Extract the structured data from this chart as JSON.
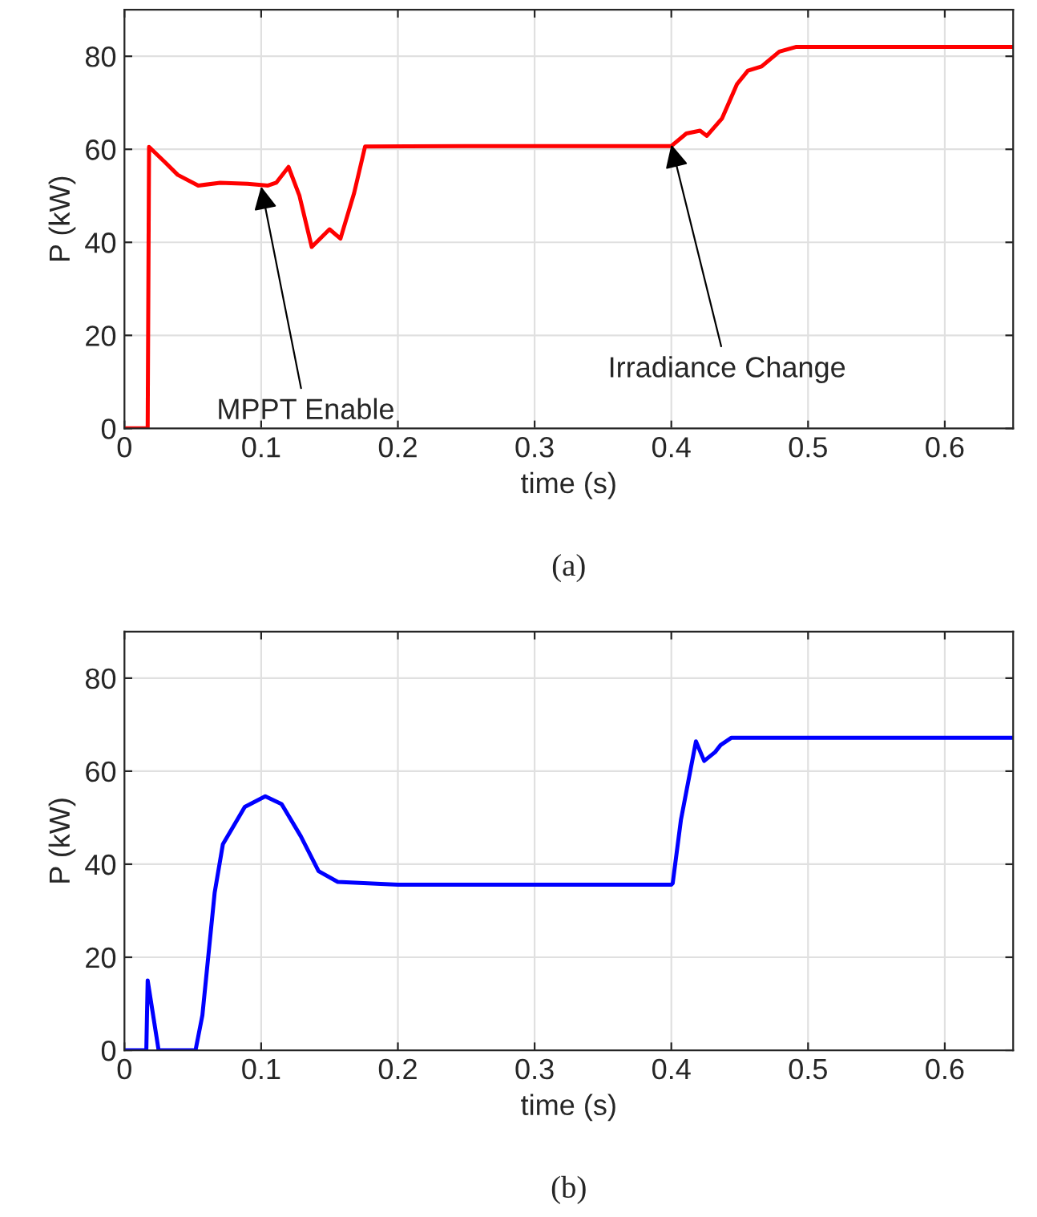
{
  "chart_data": [
    {
      "type": "line",
      "xlabel": "time (s)",
      "ylabel": "P (kW)",
      "xlim": [
        0,
        0.65
      ],
      "ylim": [
        0,
        90
      ],
      "xticks": [
        0,
        0.1,
        0.2,
        0.3,
        0.4,
        0.5,
        0.6
      ],
      "yticks": [
        0,
        20,
        40,
        60,
        80
      ],
      "grid": true,
      "series": [
        {
          "color": "#ff0000",
          "x": [
            0,
            0.017,
            0.018,
            0.029,
            0.039,
            0.054,
            0.07,
            0.09,
            0.105,
            0.111,
            0.12,
            0.128,
            0.137,
            0.15,
            0.158,
            0.168,
            0.176,
            0.25,
            0.35,
            0.4,
            0.411,
            0.421,
            0.426,
            0.437,
            0.448,
            0.456,
            0.466,
            0.479,
            0.491,
            0.65
          ],
          "values": [
            0,
            0,
            60.5,
            57.4,
            54.5,
            52.2,
            52.8,
            52.6,
            52.2,
            52.8,
            56.2,
            50,
            39,
            42.8,
            40.8,
            50.6,
            60.6,
            60.7,
            60.7,
            60.7,
            63.4,
            64,
            62.9,
            66.6,
            74,
            76.9,
            77.8,
            81,
            82,
            82
          ]
        }
      ],
      "annotations": [
        {
          "text": "MPPT Enable",
          "x": 0.1,
          "y": 52
        },
        {
          "text": "Irradiance Change",
          "x": 0.4,
          "y": 61
        },
        "(a)"
      ]
    },
    {
      "type": "line",
      "xlabel": "time (s)",
      "ylabel": "P (kW)",
      "xlim": [
        0,
        0.65
      ],
      "ylim": [
        0,
        90
      ],
      "xticks": [
        0,
        0.1,
        0.2,
        0.3,
        0.4,
        0.5,
        0.6
      ],
      "yticks": [
        0,
        20,
        40,
        60,
        80
      ],
      "grid": true,
      "series": [
        {
          "color": "#0000ff",
          "x": [
            0,
            0.016,
            0.017,
            0.025,
            0.052,
            0.057,
            0.066,
            0.072,
            0.088,
            0.103,
            0.115,
            0.129,
            0.142,
            0.156,
            0.2,
            0.3,
            0.4,
            0.401,
            0.407,
            0.418,
            0.424,
            0.432,
            0.436,
            0.444,
            0.65
          ],
          "values": [
            0,
            0,
            15,
            0,
            0,
            7.5,
            33.9,
            44.3,
            52.3,
            54.6,
            52.9,
            46,
            38.5,
            36.2,
            35.6,
            35.6,
            35.6,
            35.9,
            49.5,
            66.4,
            62.2,
            64.1,
            65.6,
            67.2,
            67.2
          ]
        }
      ],
      "annotations": [
        "(b)"
      ]
    }
  ]
}
